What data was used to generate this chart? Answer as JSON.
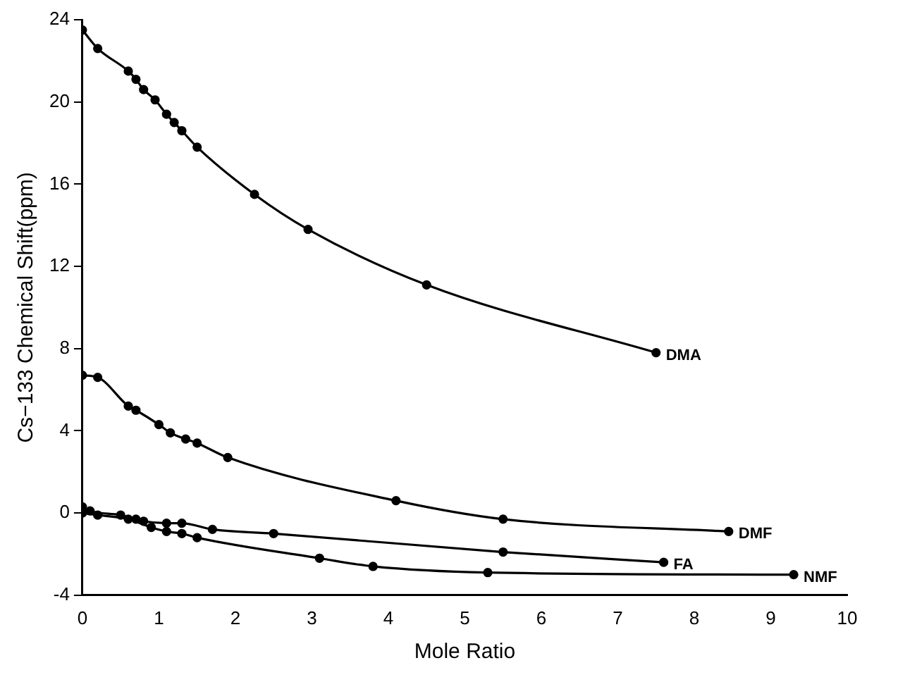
{
  "chart_data": {
    "type": "line",
    "xlabel": "Mole Ratio",
    "ylabel": "Cs−133 Chemical Shift(ppm)",
    "xlim": [
      0,
      10
    ],
    "xticks": [
      0,
      1,
      2,
      3,
      4,
      5,
      6,
      7,
      8,
      9,
      10
    ],
    "ylim": [
      -4,
      24
    ],
    "yticks": [
      -4,
      0,
      4,
      8,
      12,
      16,
      20,
      24
    ],
    "grid": false,
    "legend": false,
    "marker": "circle",
    "line_style": "solid",
    "series": [
      {
        "name": "DMA",
        "color": "#000000",
        "x": [
          0,
          0.2,
          0.6,
          0.7,
          0.8,
          0.95,
          1.1,
          1.2,
          1.3,
          1.5,
          2.25,
          2.95,
          4.5,
          7.5
        ],
        "values": [
          23.5,
          22.6,
          21.5,
          21.1,
          20.6,
          20.1,
          19.4,
          19.0,
          18.6,
          17.8,
          15.5,
          13.8,
          11.1,
          7.8
        ]
      },
      {
        "name": "DMF",
        "color": "#000000",
        "x": [
          0,
          0.2,
          0.6,
          0.7,
          1.0,
          1.15,
          1.35,
          1.5,
          1.9,
          4.1,
          5.5,
          8.45
        ],
        "values": [
          6.7,
          6.6,
          5.2,
          5.0,
          4.3,
          3.9,
          3.6,
          3.4,
          2.7,
          0.6,
          -0.3,
          -0.9
        ]
      },
      {
        "name": "FA",
        "color": "#000000",
        "x": [
          0,
          0.1,
          0.5,
          0.7,
          0.8,
          1.1,
          1.3,
          1.7,
          2.5,
          5.5,
          7.6
        ],
        "values": [
          0.3,
          0.1,
          -0.1,
          -0.3,
          -0.4,
          -0.5,
          -0.5,
          -0.8,
          -1.0,
          -1.9,
          -2.4
        ]
      },
      {
        "name": "NMF",
        "color": "#000000",
        "x": [
          0,
          0.2,
          0.6,
          0.9,
          1.1,
          1.3,
          1.5,
          3.1,
          3.8,
          5.3,
          9.3
        ],
        "values": [
          0,
          -0.1,
          -0.3,
          -0.7,
          -0.9,
          -1.0,
          -1.2,
          -2.2,
          -2.6,
          -2.9,
          -3.0
        ]
      }
    ]
  }
}
